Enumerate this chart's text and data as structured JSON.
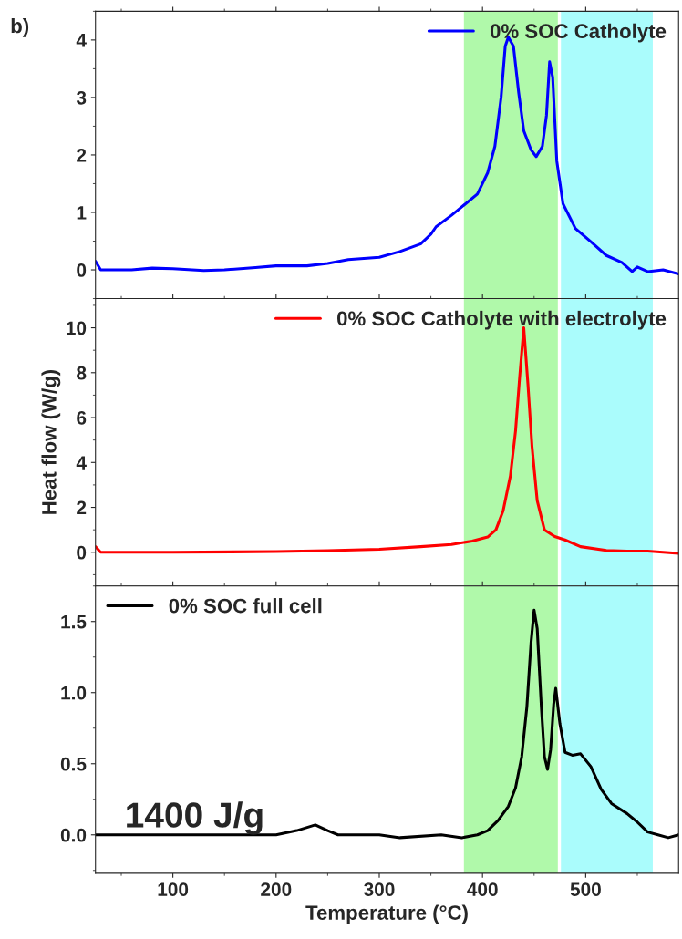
{
  "chart_data": [
    {
      "type": "line",
      "x": [
        25,
        30,
        60,
        80,
        100,
        130,
        150,
        180,
        200,
        230,
        250,
        270,
        300,
        320,
        340,
        350,
        355,
        370,
        385,
        395,
        405,
        412,
        418,
        422,
        425,
        430,
        435,
        440,
        447,
        452,
        458,
        462,
        465,
        468,
        472,
        478,
        490,
        505,
        520,
        535,
        545,
        550,
        560,
        575,
        590
      ],
      "series": [
        {
          "name": "0% SOC Catholyte",
          "color": "#0000ff",
          "values": [
            0.15,
            0.0,
            0.0,
            0.03,
            0.02,
            -0.01,
            0.0,
            0.04,
            0.07,
            0.07,
            0.11,
            0.18,
            0.22,
            0.32,
            0.45,
            0.62,
            0.75,
            0.95,
            1.17,
            1.32,
            1.69,
            2.15,
            3.0,
            3.89,
            4.05,
            3.89,
            3.09,
            2.42,
            2.09,
            1.97,
            2.15,
            2.69,
            3.62,
            3.35,
            1.89,
            1.15,
            0.72,
            0.49,
            0.25,
            0.13,
            -0.03,
            0.05,
            -0.03,
            0.0,
            -0.07
          ]
        }
      ],
      "xlim": [
        25,
        590
      ],
      "xticks": [
        100,
        200,
        300,
        400,
        500
      ],
      "ylim": [
        -0.5,
        4.5
      ],
      "yticks": [
        0,
        1,
        2,
        3,
        4
      ],
      "bands": [
        {
          "axis": "x",
          "from": 382,
          "to": 473,
          "color": "#b0f9aa"
        },
        {
          "axis": "x",
          "from": 476,
          "to": 565,
          "color": "#aafcfc"
        }
      ],
      "legend": "top right",
      "tick_labels": "y",
      "annotations": [
        "b)"
      ]
    },
    {
      "type": "line",
      "x": [
        25,
        30,
        100,
        200,
        250,
        300,
        340,
        370,
        390,
        405,
        413,
        420,
        427,
        432,
        436,
        440,
        444,
        448,
        453,
        460,
        470,
        480,
        495,
        520,
        540,
        560,
        575,
        590
      ],
      "series": [
        {
          "name": "0% SOC Catholyte with electrolyte",
          "color": "#ff0000",
          "values": [
            0.25,
            0.0,
            0.0,
            0.03,
            0.07,
            0.13,
            0.25,
            0.35,
            0.5,
            0.68,
            1.0,
            1.85,
            3.4,
            5.4,
            7.8,
            10.0,
            7.5,
            4.7,
            2.3,
            1.0,
            0.7,
            0.55,
            0.25,
            0.08,
            0.05,
            0.05,
            0.0,
            -0.05
          ]
        }
      ],
      "xlim": [
        25,
        590
      ],
      "xticks": [
        100,
        200,
        300,
        400,
        500
      ],
      "ylim": [
        -1.5,
        11.3
      ],
      "yticks": [
        0,
        2,
        4,
        6,
        8,
        10
      ],
      "bands": [
        {
          "axis": "x",
          "from": 382,
          "to": 473,
          "color": "#b0f9aa"
        },
        {
          "axis": "x",
          "from": 476,
          "to": 565,
          "color": "#aafcfc"
        }
      ],
      "legend": "top right",
      "tick_labels": "y",
      "ylabel": "Heat flow (W/g)"
    },
    {
      "type": "line",
      "x": [
        25,
        50,
        100,
        150,
        200,
        220,
        238,
        250,
        260,
        300,
        320,
        360,
        380,
        395,
        405,
        415,
        425,
        432,
        438,
        443,
        447,
        450,
        453,
        457,
        460,
        463,
        466,
        469,
        471,
        475,
        480,
        487,
        495,
        505,
        515,
        525,
        540,
        550,
        560,
        570,
        580,
        590
      ],
      "series": [
        {
          "name": "0% SOC full cell",
          "color": "#000000",
          "values": [
            0.0,
            0.0,
            0.0,
            0.0,
            0.0,
            0.03,
            0.07,
            0.03,
            0.0,
            0.0,
            -0.02,
            0.0,
            -0.02,
            0.0,
            0.03,
            0.1,
            0.2,
            0.33,
            0.55,
            0.9,
            1.35,
            1.58,
            1.45,
            0.9,
            0.55,
            0.46,
            0.6,
            0.92,
            1.03,
            0.78,
            0.58,
            0.56,
            0.57,
            0.48,
            0.32,
            0.22,
            0.15,
            0.09,
            0.02,
            0.0,
            -0.02,
            0.0
          ]
        }
      ],
      "xlim": [
        25,
        590
      ],
      "xticks": [
        100,
        200,
        300,
        400,
        500
      ],
      "ylim": [
        -0.27,
        1.75
      ],
      "yticks": [
        {
          "value": 0,
          "label": "0.0"
        },
        {
          "value": 0.5,
          "label": "0.5"
        },
        {
          "value": 1.0,
          "label": "1.0"
        },
        {
          "value": 1.5,
          "label": "1.5"
        }
      ],
      "bands": [
        {
          "axis": "x",
          "from": 382,
          "to": 473,
          "color": "#b0f9aa"
        },
        {
          "axis": "x",
          "from": 476,
          "to": 565,
          "color": "#aafcfc"
        }
      ],
      "legend": "top left",
      "xlabel": "Temperature (°C)",
      "annotations": [
        {
          "text": "1400 J/g"
        }
      ]
    }
  ]
}
